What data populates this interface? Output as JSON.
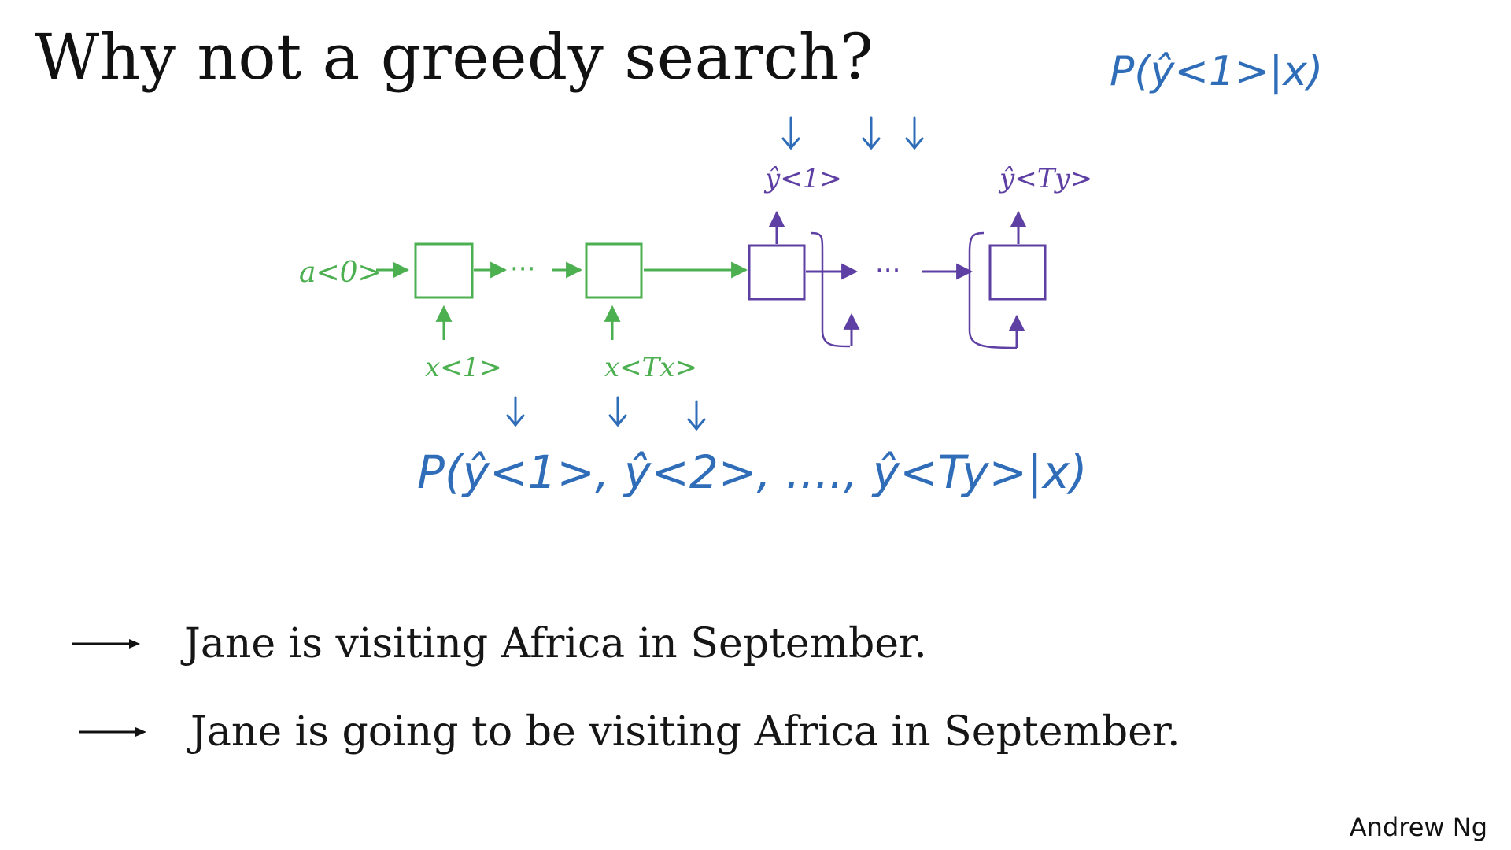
{
  "title": "Why not a greedy search?",
  "colors": {
    "encoder": "#4caf50",
    "decoder": "#5e3fa3",
    "annotation": "#2f6db8",
    "text": "#111111"
  },
  "diagram": {
    "encoder_init_label": "a<0>",
    "encoder_input_first": "x<1>",
    "encoder_input_last": "x<Tx>",
    "ellipsis": "···",
    "decoder_output_first": "ŷ<1>",
    "decoder_output_last": "ŷ<Ty>"
  },
  "annotations": {
    "top_formula": "P(ŷ<1>|x)",
    "bottom_formula": "P(ŷ<1>, ŷ<2>, ...., ŷ<Ty>|x)"
  },
  "examples": [
    {
      "text": "Jane is visiting Africa in September."
    },
    {
      "text": "Jane is going to be visiting Africa in September."
    }
  ],
  "author": "Andrew Ng"
}
